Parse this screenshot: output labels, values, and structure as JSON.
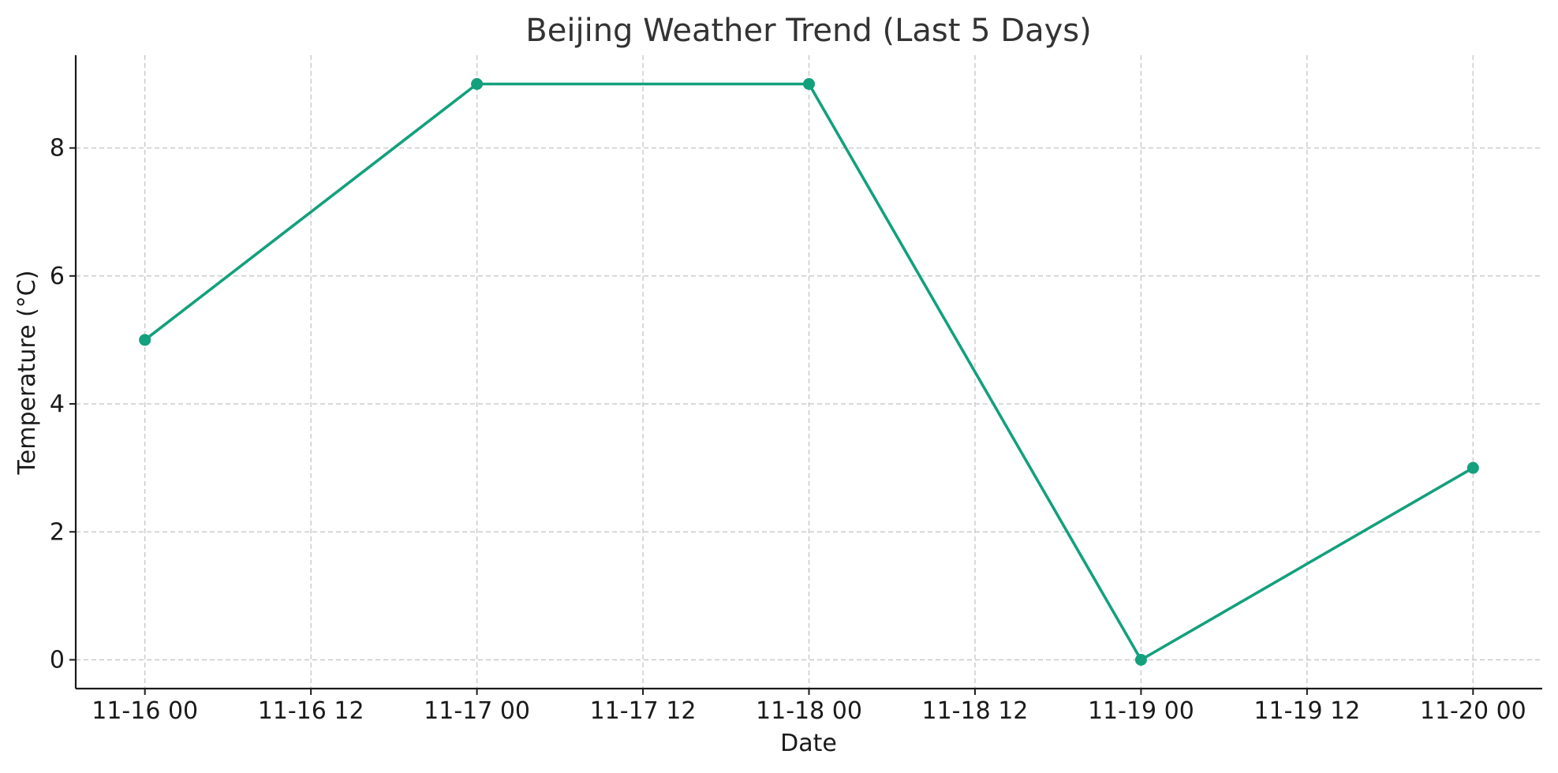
{
  "chart_data": {
    "type": "line",
    "title": "Beijing Weather Trend (Last 5 Days)",
    "xlabel": "Date",
    "ylabel": "Temperature (°C)",
    "x_tick_labels": [
      "11-16 00",
      "11-16 12",
      "11-17 00",
      "11-17 12",
      "11-18 00",
      "11-18 12",
      "11-19 00",
      "11-19 12",
      "11-20 00"
    ],
    "y_ticks": [
      0,
      2,
      4,
      6,
      8
    ],
    "ylim": [
      -0.45,
      9.45
    ],
    "xlim": [
      "11-15 19:00",
      "11-20 05:00"
    ],
    "grid": true,
    "series": [
      {
        "x": [
          "11-16 00",
          "11-17 00",
          "11-18 00",
          "11-19 00",
          "11-20 00"
        ],
        "values": [
          5,
          9,
          9,
          0,
          3
        ],
        "color": "#13a07d",
        "marker": "circle"
      }
    ]
  }
}
